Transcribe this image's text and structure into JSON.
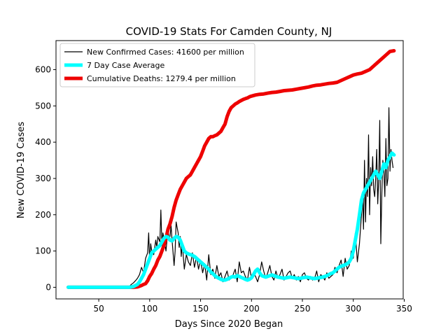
{
  "chart_data": {
    "type": "line",
    "title": "COVID-19 Stats For Camden County, NJ",
    "xlabel": "Days Since 2020 Began",
    "ylabel": "New COVID-19 Cases",
    "xlim": [
      8,
      349
    ],
    "ylim": [
      -32,
      680
    ],
    "xticks": [
      50,
      100,
      150,
      200,
      250,
      300,
      350
    ],
    "yticks": [
      0,
      100,
      200,
      300,
      400,
      500,
      600
    ],
    "grid": false,
    "legend_position": "top-left",
    "series": [
      {
        "name": "New Confirmed Cases: 41600 per million",
        "color": "#000000",
        "style": "thin",
        "x": [
          20,
          30,
          40,
          50,
          60,
          70,
          78,
          80,
          82,
          84,
          86,
          88,
          90,
          92,
          94,
          96,
          98,
          99,
          100,
          101,
          102,
          104,
          106,
          107,
          108,
          110,
          111,
          112,
          113,
          114,
          116,
          118,
          119,
          120,
          121,
          122,
          124,
          125,
          126,
          128,
          129,
          130,
          131,
          132,
          134,
          136,
          138,
          140,
          142,
          144,
          146,
          148,
          150,
          152,
          154,
          156,
          158,
          160,
          162,
          164,
          166,
          168,
          170,
          172,
          174,
          176,
          178,
          180,
          182,
          184,
          186,
          188,
          190,
          192,
          194,
          196,
          198,
          200,
          202,
          204,
          206,
          208,
          210,
          212,
          214,
          216,
          218,
          220,
          222,
          224,
          226,
          228,
          230,
          232,
          234,
          236,
          238,
          240,
          242,
          244,
          246,
          248,
          250,
          252,
          254,
          256,
          258,
          260,
          262,
          264,
          266,
          268,
          270,
          272,
          274,
          276,
          278,
          280,
          282,
          284,
          286,
          288,
          290,
          292,
          294,
          296,
          298,
          300,
          302,
          304,
          306,
          308,
          309,
          310,
          311,
          312,
          313,
          314,
          315,
          316,
          317,
          318,
          319,
          320,
          321,
          322,
          323,
          324,
          325,
          326,
          327,
          328,
          329,
          330,
          331,
          332,
          333,
          334,
          335,
          336,
          337,
          338,
          339
        ],
        "values": [
          0,
          0,
          0,
          0,
          0,
          0,
          0,
          2,
          8,
          12,
          18,
          25,
          35,
          55,
          40,
          80,
          95,
          150,
          70,
          120,
          100,
          90,
          130,
          110,
          140,
          125,
          213,
          115,
          150,
          135,
          100,
          160,
          135,
          140,
          170,
          130,
          60,
          100,
          180,
          150,
          110,
          140,
          85,
          120,
          50,
          90,
          70,
          60,
          95,
          55,
          85,
          50,
          75,
          40,
          65,
          20,
          90,
          35,
          50,
          25,
          60,
          30,
          40,
          15,
          30,
          45,
          20,
          25,
          35,
          50,
          15,
          70,
          40,
          45,
          30,
          20,
          55,
          25,
          40,
          30,
          15,
          35,
          70,
          45,
          25,
          40,
          60,
          30,
          20,
          45,
          25,
          35,
          50,
          20,
          30,
          40,
          45,
          25,
          35,
          20,
          30,
          15,
          35,
          40,
          25,
          20,
          30,
          20,
          25,
          45,
          15,
          35,
          30,
          20,
          40,
          25,
          30,
          35,
          55,
          40,
          60,
          75,
          30,
          80,
          50,
          60,
          100,
          80,
          150,
          70,
          120,
          200,
          260,
          160,
          350,
          180,
          300,
          250,
          420,
          200,
          330,
          280,
          360,
          270,
          250,
          300,
          380,
          230,
          300,
          460,
          120,
          260,
          350,
          320,
          250,
          410,
          280,
          300,
          495,
          320,
          380,
          350,
          330
        ]
      },
      {
        "name": "7 Day Case Average",
        "color": "#00ffff",
        "style": "thick",
        "x": [
          20,
          40,
          60,
          80,
          84,
          88,
          90,
          92,
          94,
          96,
          98,
          100,
          102,
          104,
          106,
          108,
          110,
          112,
          114,
          116,
          118,
          120,
          122,
          124,
          126,
          128,
          130,
          132,
          134,
          136,
          138,
          140,
          142,
          144,
          146,
          148,
          150,
          152,
          154,
          156,
          158,
          160,
          162,
          164,
          166,
          168,
          170,
          172,
          174,
          176,
          178,
          180,
          182,
          184,
          186,
          188,
          190,
          192,
          194,
          196,
          198,
          200,
          202,
          204,
          206,
          208,
          210,
          212,
          214,
          216,
          218,
          220,
          222,
          224,
          226,
          228,
          230,
          232,
          234,
          236,
          238,
          240,
          242,
          244,
          246,
          248,
          250,
          252,
          254,
          256,
          258,
          260,
          262,
          264,
          266,
          268,
          270,
          272,
          274,
          276,
          278,
          280,
          282,
          284,
          286,
          288,
          290,
          292,
          294,
          296,
          298,
          300,
          302,
          304,
          306,
          308,
          310,
          312,
          314,
          316,
          318,
          320,
          322,
          324,
          326,
          328,
          330,
          332,
          334,
          336,
          338,
          340
        ],
        "values": [
          0,
          0,
          0,
          0,
          2,
          8,
          15,
          25,
          35,
          50,
          65,
          80,
          95,
          100,
          105,
          110,
          115,
          125,
          135,
          140,
          138,
          130,
          128,
          135,
          140,
          138,
          130,
          115,
          100,
          95,
          92,
          90,
          88,
          85,
          80,
          75,
          70,
          65,
          60,
          55,
          50,
          42,
          38,
          32,
          28,
          25,
          22,
          20,
          20,
          22,
          25,
          28,
          30,
          28,
          32,
          30,
          27,
          25,
          22,
          20,
          22,
          26,
          35,
          45,
          50,
          40,
          32,
          30,
          28,
          30,
          32,
          34,
          32,
          30,
          28,
          27,
          26,
          25,
          26,
          27,
          28,
          27,
          26,
          25,
          24,
          25,
          26,
          27,
          28,
          27,
          26,
          25,
          24,
          25,
          26,
          27,
          28,
          30,
          32,
          35,
          38,
          40,
          45,
          50,
          55,
          58,
          60,
          62,
          65,
          70,
          80,
          100,
          130,
          160,
          200,
          240,
          260,
          270,
          280,
          290,
          300,
          310,
          320,
          310,
          300,
          320,
          340,
          330,
          350,
          360,
          370,
          365
        ],
        "ymax_hint": null
      },
      {
        "name": "Cumulative Deaths: 1279.4 per million",
        "color": "#ee0000",
        "style": "thick",
        "x": [
          20,
          40,
          60,
          70,
          80,
          84,
          88,
          90,
          92,
          94,
          96,
          98,
          100,
          102,
          104,
          106,
          108,
          110,
          112,
          114,
          116,
          118,
          120,
          122,
          124,
          126,
          128,
          130,
          132,
          134,
          136,
          138,
          140,
          142,
          144,
          146,
          148,
          150,
          152,
          154,
          156,
          158,
          160,
          162,
          164,
          166,
          168,
          170,
          172,
          174,
          176,
          178,
          180,
          182,
          184,
          186,
          188,
          190,
          192,
          194,
          196,
          198,
          200,
          204,
          208,
          212,
          216,
          220,
          224,
          228,
          232,
          236,
          240,
          244,
          248,
          252,
          256,
          260,
          264,
          268,
          272,
          276,
          280,
          284,
          288,
          292,
          296,
          300,
          304,
          308,
          312,
          316,
          320,
          324,
          328,
          332,
          336,
          340
        ],
        "values": [
          0,
          0,
          0,
          0,
          0,
          0,
          1,
          3,
          5,
          8,
          10,
          18,
          30,
          38,
          50,
          60,
          75,
          85,
          100,
          115,
          135,
          160,
          175,
          195,
          220,
          240,
          255,
          270,
          280,
          290,
          300,
          305,
          310,
          320,
          330,
          340,
          350,
          360,
          375,
          390,
          400,
          410,
          415,
          415,
          418,
          420,
          425,
          430,
          440,
          450,
          470,
          485,
          495,
          500,
          505,
          508,
          512,
          515,
          518,
          520,
          522,
          525,
          527,
          530,
          532,
          533,
          535,
          537,
          538,
          540,
          542,
          543,
          544,
          546,
          548,
          550,
          552,
          555,
          557,
          558,
          560,
          562,
          563,
          565,
          570,
          575,
          580,
          585,
          588,
          590,
          595,
          600,
          610,
          620,
          630,
          640,
          650,
          652
        ],
        "note_scale": "plotted on same axis as shown"
      }
    ]
  }
}
